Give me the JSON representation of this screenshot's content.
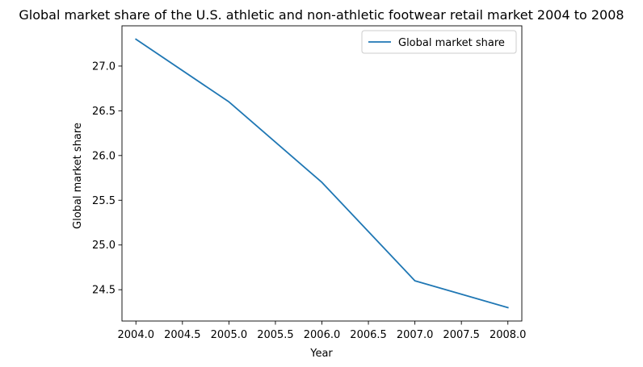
{
  "chart_data": {
    "type": "line",
    "title": "Global market share of the U.S. athletic and non-athletic footwear retail market 2004 to 2008",
    "xlabel": "Year",
    "ylabel": "Global market share",
    "x": [
      2004,
      2005,
      2006,
      2007,
      2008
    ],
    "series": [
      {
        "name": "Global market share",
        "values": [
          27.3,
          26.6,
          25.7,
          24.6,
          24.3
        ],
        "color": "#1f77b4"
      }
    ],
    "xlim": [
      2003.85,
      2008.15
    ],
    "ylim": [
      24.15,
      27.45
    ],
    "xticks": [
      2004.0,
      2004.5,
      2005.0,
      2005.5,
      2006.0,
      2006.5,
      2007.0,
      2007.5,
      2008.0
    ],
    "xtick_labels": [
      "2004.0",
      "2004.5",
      "2005.0",
      "2005.5",
      "2006.0",
      "2006.5",
      "2007.0",
      "2007.5",
      "2008.0"
    ],
    "yticks": [
      24.5,
      25.0,
      25.5,
      26.0,
      26.5,
      27.0
    ],
    "ytick_labels": [
      "24.5",
      "25.0",
      "25.5",
      "26.0",
      "26.5",
      "27.0"
    ],
    "grid": false,
    "legend_position": "top-right"
  }
}
